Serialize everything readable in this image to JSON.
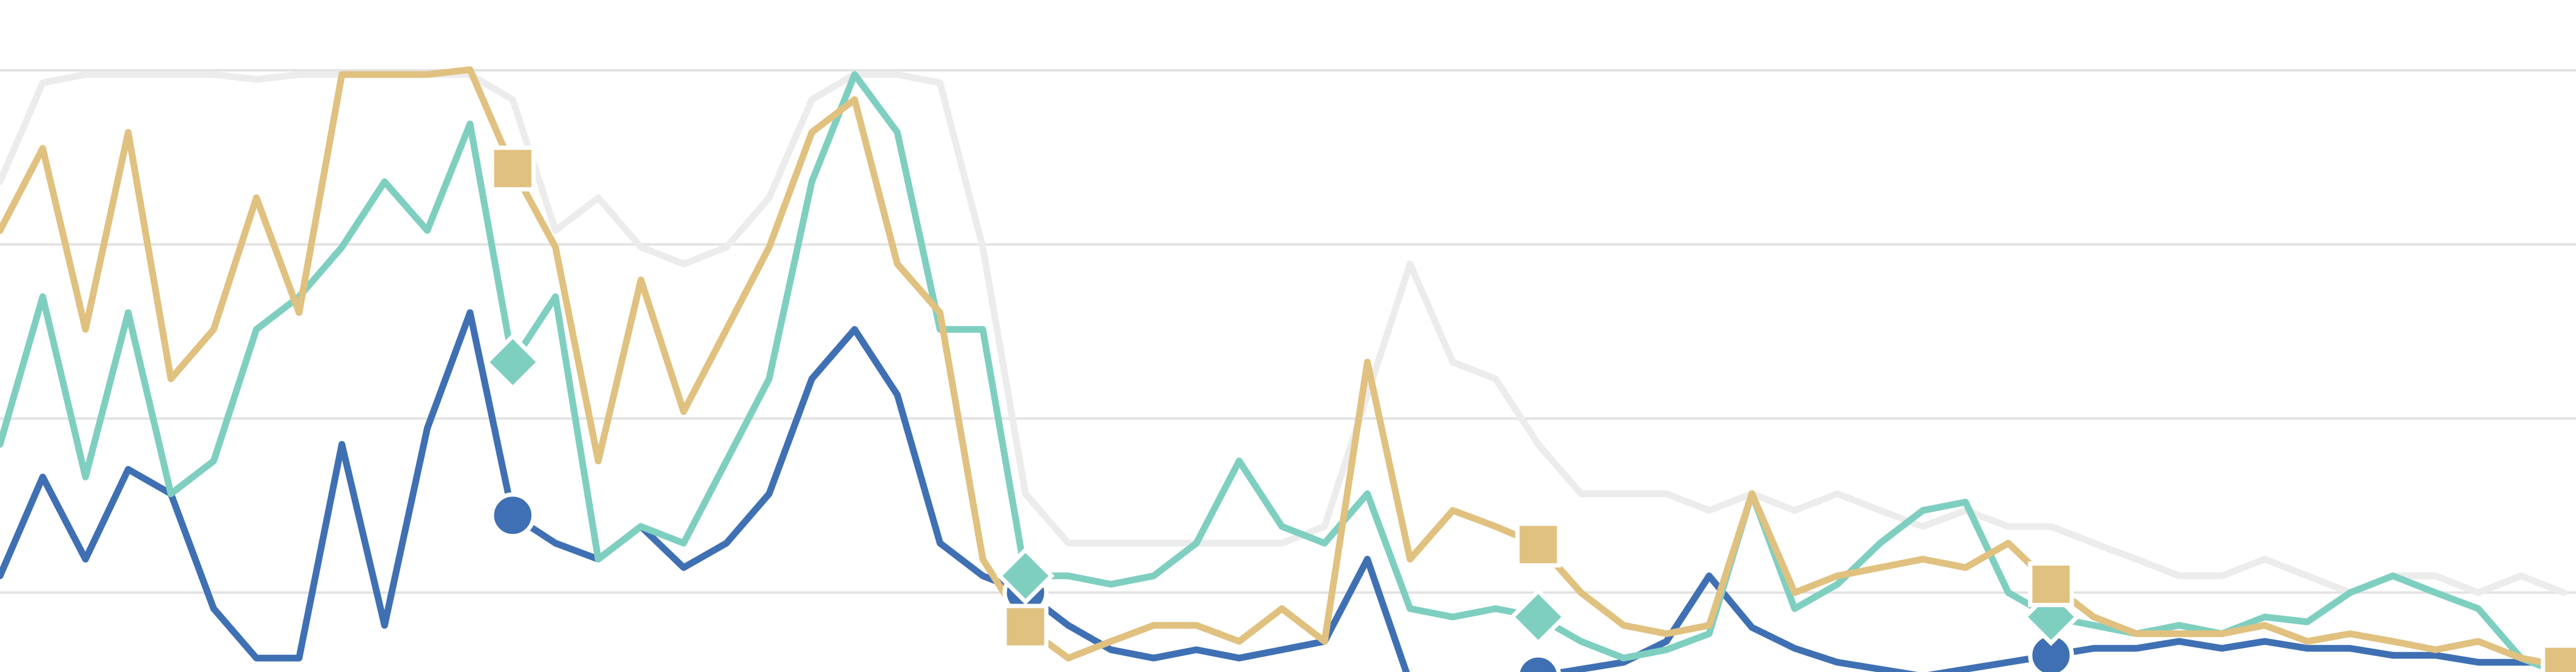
{
  "chart_data": {
    "type": "line",
    "categories": [
      null,
      null,
      null,
      null,
      null,
      null,
      null,
      null,
      null,
      null,
      null,
      null,
      null,
      null,
      null,
      null,
      null,
      null,
      null,
      null,
      null,
      null,
      null,
      null,
      null,
      null,
      null,
      null,
      null,
      null,
      null,
      null,
      null,
      null,
      null,
      null,
      null,
      null,
      null,
      null,
      null,
      null,
      null,
      null,
      null,
      null,
      null,
      null,
      null,
      null,
      null,
      null,
      null,
      null,
      null,
      null,
      null,
      null,
      null,
      null,
      null
    ],
    "ylim": [
      13.6,
      110.1
    ],
    "ygrid": [
      25,
      50,
      75,
      100
    ],
    "grid_color": "#e3e3e3",
    "marker_every": 12,
    "series": [
      {
        "color": "#ececec",
        "marker": "none",
        "values": [
          84,
          98.2,
          99.4,
          99.4,
          99.4,
          99.4,
          98.7,
          99.4,
          99.4,
          99.4,
          99.4,
          99.4,
          95.8,
          77,
          81.7,
          74.6,
          72.2,
          74.6,
          81.7,
          95.8,
          99.4,
          99.4,
          98.2,
          74.6,
          39.2,
          32.1,
          32.1,
          32.1,
          32.1,
          32.1,
          32.1,
          34.5,
          53.4,
          72.2,
          58.1,
          55.7,
          46.3,
          39.2,
          39.2,
          39.2,
          36.8,
          39.2,
          36.8,
          39.2,
          36.8,
          34.5,
          36.8,
          34.5,
          34.5,
          32.1,
          29.8,
          27.4,
          27.4,
          29.8,
          27.4,
          25.0,
          27.4,
          27.4,
          25.0,
          27.4,
          25.0
        ]
      },
      {
        "color": "#3f70b3",
        "marker": "circle",
        "values": [
          27.4,
          41.6,
          29.8,
          42.7,
          39.2,
          22.7,
          15.6,
          15.6,
          46.3,
          20.3,
          48.6,
          65.2,
          36.1,
          32.1,
          29.8,
          34.5,
          28.6,
          32.1,
          39.2,
          55.7,
          62.8,
          53.4,
          32.1,
          27.4,
          25.0,
          20.3,
          16.8,
          15.6,
          16.8,
          15.6,
          16.8,
          18.0,
          29.8,
          12,
          12,
          12,
          13,
          14,
          15,
          18,
          27.4,
          20,
          17,
          15,
          14,
          13,
          14,
          15,
          16,
          17,
          17,
          18,
          17,
          18,
          17,
          17,
          16,
          16,
          15,
          15,
          15
        ]
      },
      {
        "color": "#7fcfc1",
        "marker": "diamond",
        "values": [
          46.3,
          67.5,
          41.6,
          65.2,
          39.2,
          43.9,
          62.8,
          67.5,
          74.6,
          84.0,
          77,
          92.3,
          58.1,
          67.5,
          29.8,
          34.5,
          32.1,
          43.9,
          55.7,
          84.0,
          99.4,
          91.1,
          62.8,
          62.8,
          27.4,
          27.4,
          26.2,
          27.4,
          32.1,
          43.9,
          34.5,
          32.1,
          39.2,
          22.7,
          21.5,
          22.7,
          21.5,
          18.0,
          15.6,
          16.8,
          19.1,
          39.2,
          22.7,
          26.2,
          32.1,
          36.8,
          38.0,
          25.0,
          21.5,
          20.3,
          19.1,
          20.3,
          19.1,
          21.5,
          20.8,
          25.0,
          27.4,
          25.0,
          22.7,
          15.6,
          13.2
        ]
      },
      {
        "color": "#e0c17f",
        "marker": "square",
        "values": [
          77,
          88.8,
          62.8,
          91.1,
          55.7,
          62.8,
          81.7,
          65.2,
          99.4,
          99.4,
          99.4,
          100.1,
          85.9,
          74.6,
          43.9,
          69.9,
          51.0,
          62.8,
          74.6,
          91.1,
          95.8,
          72.2,
          65.2,
          29.8,
          20.1,
          15.6,
          18.0,
          20.3,
          20.3,
          18.0,
          22.7,
          18.0,
          58.1,
          29.8,
          36.8,
          34.5,
          31.9,
          25.0,
          20.3,
          19.1,
          20.3,
          39.2,
          25.0,
          27.4,
          28.6,
          29.8,
          28.6,
          32.1,
          26.2,
          21.5,
          19.1,
          19.1,
          19.1,
          20.3,
          18.0,
          19.1,
          18.0,
          16.8,
          18.0,
          15.6,
          14.4
        ]
      }
    ]
  }
}
